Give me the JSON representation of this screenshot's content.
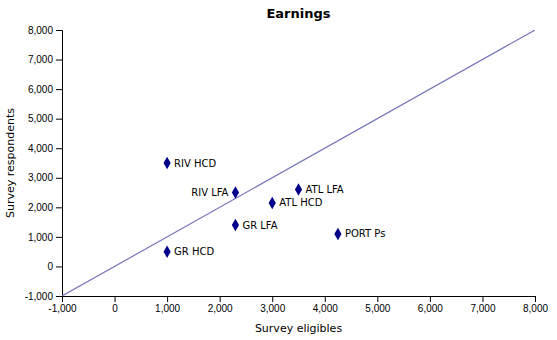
{
  "chart_data": {
    "type": "scatter",
    "title": "Earnings",
    "x_label": "Survey eligibles",
    "y_label": "Survey respondents",
    "series": [
      {
        "type": "line",
        "color": "#7777BB",
        "x": [
          -1000,
          8000
        ],
        "values": [
          -1000,
          8000
        ]
      },
      {
        "type": "scatter",
        "marker": "diamond",
        "color": "#00008B",
        "x": [
          1000,
          2300,
          2300,
          1000,
          3500,
          3000,
          4250
        ],
        "values": [
          3500,
          2500,
          1400,
          500,
          2600,
          2150,
          1100
        ],
        "labels": [
          "RIV HCD",
          "RIV LFA",
          "GR LFA",
          "GR HCD",
          "ATL LFA",
          "ATL HCD",
          "PORT Ps"
        ]
      }
    ],
    "xlim": [
      -1000,
      8000
    ],
    "ylim": [
      -1000,
      8000
    ],
    "xticks": [
      {
        "value": -1000,
        "label": "-1,000"
      },
      0,
      {
        "value": 1000,
        "label": "1,000"
      },
      {
        "value": 2000,
        "label": "2,000"
      },
      {
        "value": 3000,
        "label": "3,000"
      },
      {
        "value": 4000,
        "label": "4,000"
      },
      {
        "value": 5000,
        "label": "5,000"
      },
      {
        "value": 6000,
        "label": "6,000"
      },
      {
        "value": 7000,
        "label": "7,000"
      },
      {
        "value": 8000,
        "label": "8,000"
      }
    ],
    "yticks": [
      {
        "value": -1000,
        "label": "-1,000"
      },
      0,
      {
        "value": 1000,
        "label": "1,000"
      },
      {
        "value": 2000,
        "label": "2,000"
      },
      {
        "value": 3000,
        "label": "3,000"
      },
      {
        "value": 4000,
        "label": "4,000"
      },
      {
        "value": 5000,
        "label": "5,000"
      },
      {
        "value": 6000,
        "label": "6,000"
      },
      {
        "value": 7000,
        "label": "7,000"
      },
      {
        "value": 8000,
        "label": "8,000"
      }
    ],
    "grid": false
  }
}
